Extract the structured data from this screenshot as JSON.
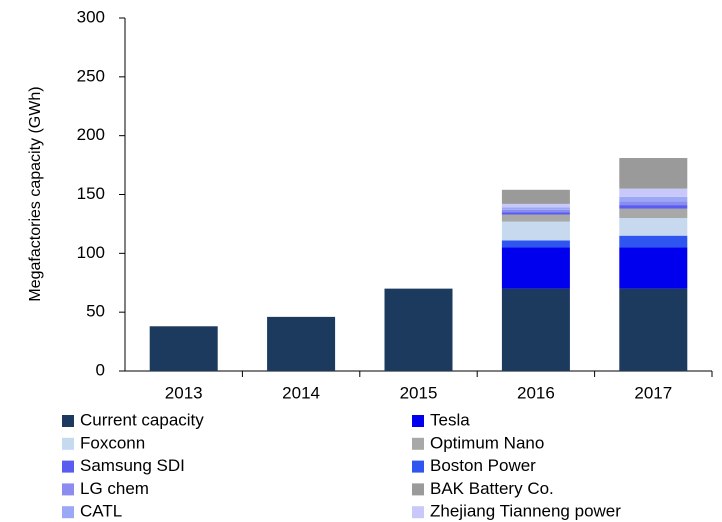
{
  "chart_data": {
    "type": "stacked_bar",
    "y_label": "Megafactories capacity (GWh)",
    "categories": [
      "2013",
      "2014",
      "2015",
      "2016",
      "2017"
    ],
    "ylim": [
      0,
      300
    ],
    "yticks": [
      0,
      50,
      100,
      150,
      200,
      250,
      300
    ],
    "series": [
      {
        "name": "Current capacity",
        "color": "#1b3a5e",
        "values": [
          38,
          46,
          70,
          70,
          70
        ]
      },
      {
        "name": "Tesla",
        "color": "#0000ee",
        "values": [
          null,
          null,
          null,
          35,
          35
        ]
      },
      {
        "name": "Boston Power",
        "color": "#2f55f0",
        "values": [
          null,
          null,
          null,
          6,
          10
        ]
      },
      {
        "name": "Foxconn",
        "color": "#c6d9ee",
        "values": [
          null,
          null,
          null,
          16,
          15
        ]
      },
      {
        "name": "Optimum Nano",
        "color": "#a8a8a8",
        "values": [
          null,
          null,
          null,
          6,
          8
        ]
      },
      {
        "name": "Samsung SDI",
        "color": "#5a5cf0",
        "values": [
          null,
          null,
          null,
          2,
          3
        ]
      },
      {
        "name": "LG chem",
        "color": "#8c8cf0",
        "values": [
          null,
          null,
          null,
          2,
          3
        ]
      },
      {
        "name": "CATL",
        "color": "#9aa8f5",
        "values": [
          null,
          null,
          null,
          2,
          4
        ]
      },
      {
        "name": "Zhejiang Tianneng power",
        "color": "#c8c8fa",
        "values": [
          null,
          null,
          null,
          3,
          7
        ]
      },
      {
        "name": "BAK Battery Co.",
        "color": "#9a9a9a",
        "values": [
          null,
          null,
          null,
          12,
          26
        ]
      }
    ]
  }
}
